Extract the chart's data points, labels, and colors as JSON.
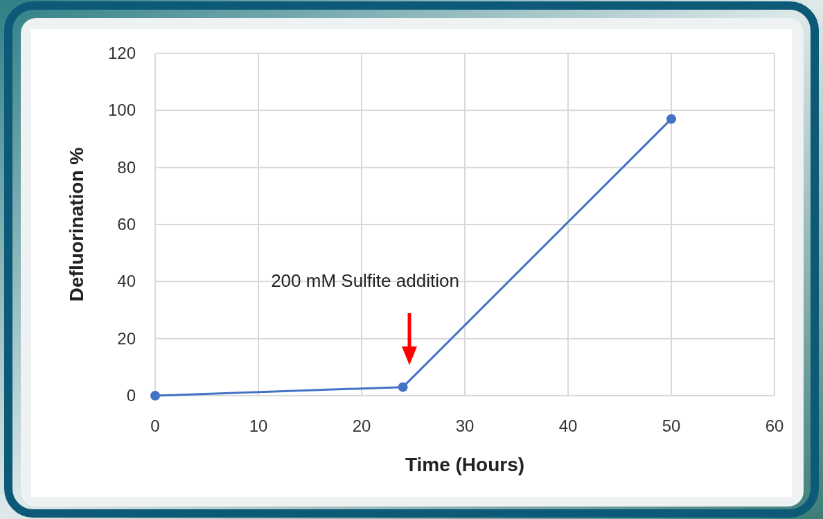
{
  "chart_data": {
    "type": "line",
    "xlabel": "Time (Hours)",
    "ylabel": "Defluorination %",
    "x": [
      0,
      24,
      50
    ],
    "series": [
      {
        "color": "#4472c4",
        "values": [
          0,
          3,
          97
        ]
      }
    ],
    "xlim": [
      0,
      60
    ],
    "xticks": [
      0,
      10,
      20,
      30,
      40,
      50,
      60
    ],
    "ylim": [
      0,
      120
    ],
    "yticks": [
      0,
      20,
      40,
      60,
      80,
      100,
      120
    ],
    "grid": true,
    "marker": "circle",
    "line_style": "solid",
    "annotations": [
      "200 mM Sulfite addition"
    ]
  }
}
